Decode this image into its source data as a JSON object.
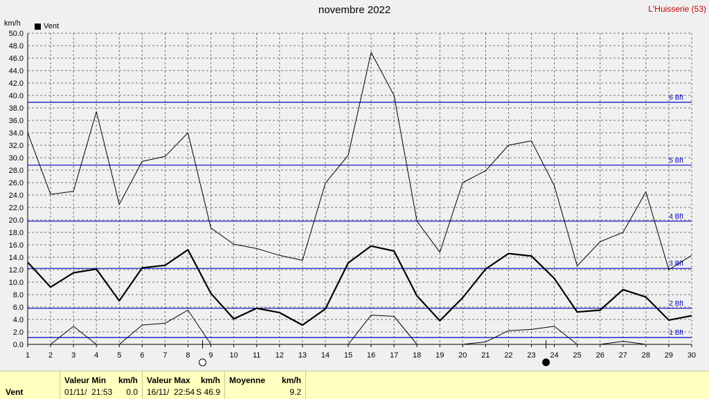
{
  "header": {
    "title": "novembre 2022",
    "station": "L'Huisserie (53)",
    "unit": "km/h"
  },
  "legend": {
    "label": "Vent",
    "color": "#000000"
  },
  "colors": {
    "background": "#f0f0f0",
    "beaufort_lines": "#0000c0",
    "station_text": "#c00000",
    "footer_bg": "#ffffc0"
  },
  "moon_icons": [
    {
      "day": 9,
      "phase": "full-moon-icon"
    },
    {
      "day": 24,
      "phase": "new-moon-icon"
    }
  ],
  "footer": {
    "row_label": "Vent",
    "min_header": "Valeur Min",
    "min_unit": "km/h",
    "min_date": "01/11/  21:53",
    "min_value": "0.0",
    "max_header": "Valeur Max",
    "max_unit": "km/h",
    "max_date": "16/11/  22:54",
    "max_value": "S 46.9",
    "avg_header": "Moyenne",
    "avg_unit": "km/h",
    "avg_value": "9.2"
  },
  "chart_data": {
    "type": "line",
    "title": "novembre 2022",
    "ylabel": "km/h",
    "xlim": [
      1,
      30
    ],
    "ylim": [
      0,
      50
    ],
    "grid": true,
    "x_ticks": [
      1,
      2,
      3,
      4,
      5,
      6,
      7,
      8,
      9,
      10,
      11,
      12,
      13,
      14,
      15,
      16,
      17,
      18,
      19,
      20,
      21,
      22,
      23,
      24,
      25,
      26,
      27,
      28,
      29,
      30
    ],
    "y_ticks": [
      "0.0",
      "2.0",
      "4.0",
      "6.0",
      "8.0",
      "10.0",
      "12.0",
      "14.0",
      "16.0",
      "18.0",
      "20.0",
      "22.0",
      "24.0",
      "26.0",
      "28.0",
      "30.0",
      "32.0",
      "34.0",
      "36.0",
      "38.0",
      "40.0",
      "42.0",
      "44.0",
      "46.0",
      "48.0",
      "50.0"
    ],
    "beaufort": [
      {
        "label": "1 Bft",
        "value": 1.1
      },
      {
        "label": "2 Bft",
        "value": 5.8
      },
      {
        "label": "3 Bft",
        "value": 12.2
      },
      {
        "label": "4 Bft",
        "value": 19.8
      },
      {
        "label": "5 Bft",
        "value": 28.8
      },
      {
        "label": "6 Bft",
        "value": 38.9
      }
    ],
    "series": [
      {
        "name": "Vent",
        "role": "max",
        "x": [
          1,
          2,
          3,
          4,
          5,
          6,
          7,
          8,
          9,
          10,
          11,
          12,
          13,
          14,
          15,
          16,
          17,
          18,
          19,
          20,
          21,
          22,
          23,
          24,
          25,
          26,
          27,
          28,
          29,
          30
        ],
        "values": [
          34.0,
          24.1,
          24.6,
          37.4,
          22.5,
          29.4,
          30.2,
          34.0,
          18.7,
          16.1,
          15.4,
          14.3,
          13.5,
          25.9,
          30.4,
          46.9,
          40.0,
          19.8,
          14.8,
          26.0,
          27.9,
          32.0,
          32.7,
          25.5,
          12.6,
          16.5,
          18.0,
          24.5,
          12.0,
          14.3
        ]
      },
      {
        "name": "Vent",
        "role": "mean",
        "x": [
          1,
          2,
          3,
          4,
          5,
          6,
          7,
          8,
          9,
          10,
          11,
          12,
          13,
          14,
          15,
          16,
          17,
          18,
          19,
          20,
          21,
          22,
          23,
          24,
          25,
          26,
          27,
          28,
          29,
          30
        ],
        "values": [
          13.2,
          9.2,
          11.5,
          12.1,
          7.0,
          12.3,
          12.7,
          15.2,
          8.2,
          4.1,
          5.8,
          5.1,
          3.1,
          5.7,
          13.1,
          15.8,
          15.0,
          7.8,
          3.8,
          7.5,
          12.1,
          14.6,
          14.2,
          10.6,
          5.2,
          5.5,
          8.8,
          7.6,
          3.9,
          4.6
        ]
      },
      {
        "name": "Vent",
        "role": "min",
        "x": [
          2,
          3,
          4,
          5,
          6,
          7,
          8,
          9,
          15,
          16,
          17,
          18,
          20,
          21,
          22,
          23,
          24,
          25,
          26,
          27,
          28
        ],
        "values": [
          0.0,
          2.9,
          0.0,
          0.0,
          3.1,
          3.4,
          5.5,
          0.0,
          0.0,
          4.7,
          4.5,
          0.0,
          0.0,
          0.4,
          2.2,
          2.4,
          2.9,
          0.0,
          0.0,
          0.5,
          0.0
        ]
      }
    ]
  }
}
